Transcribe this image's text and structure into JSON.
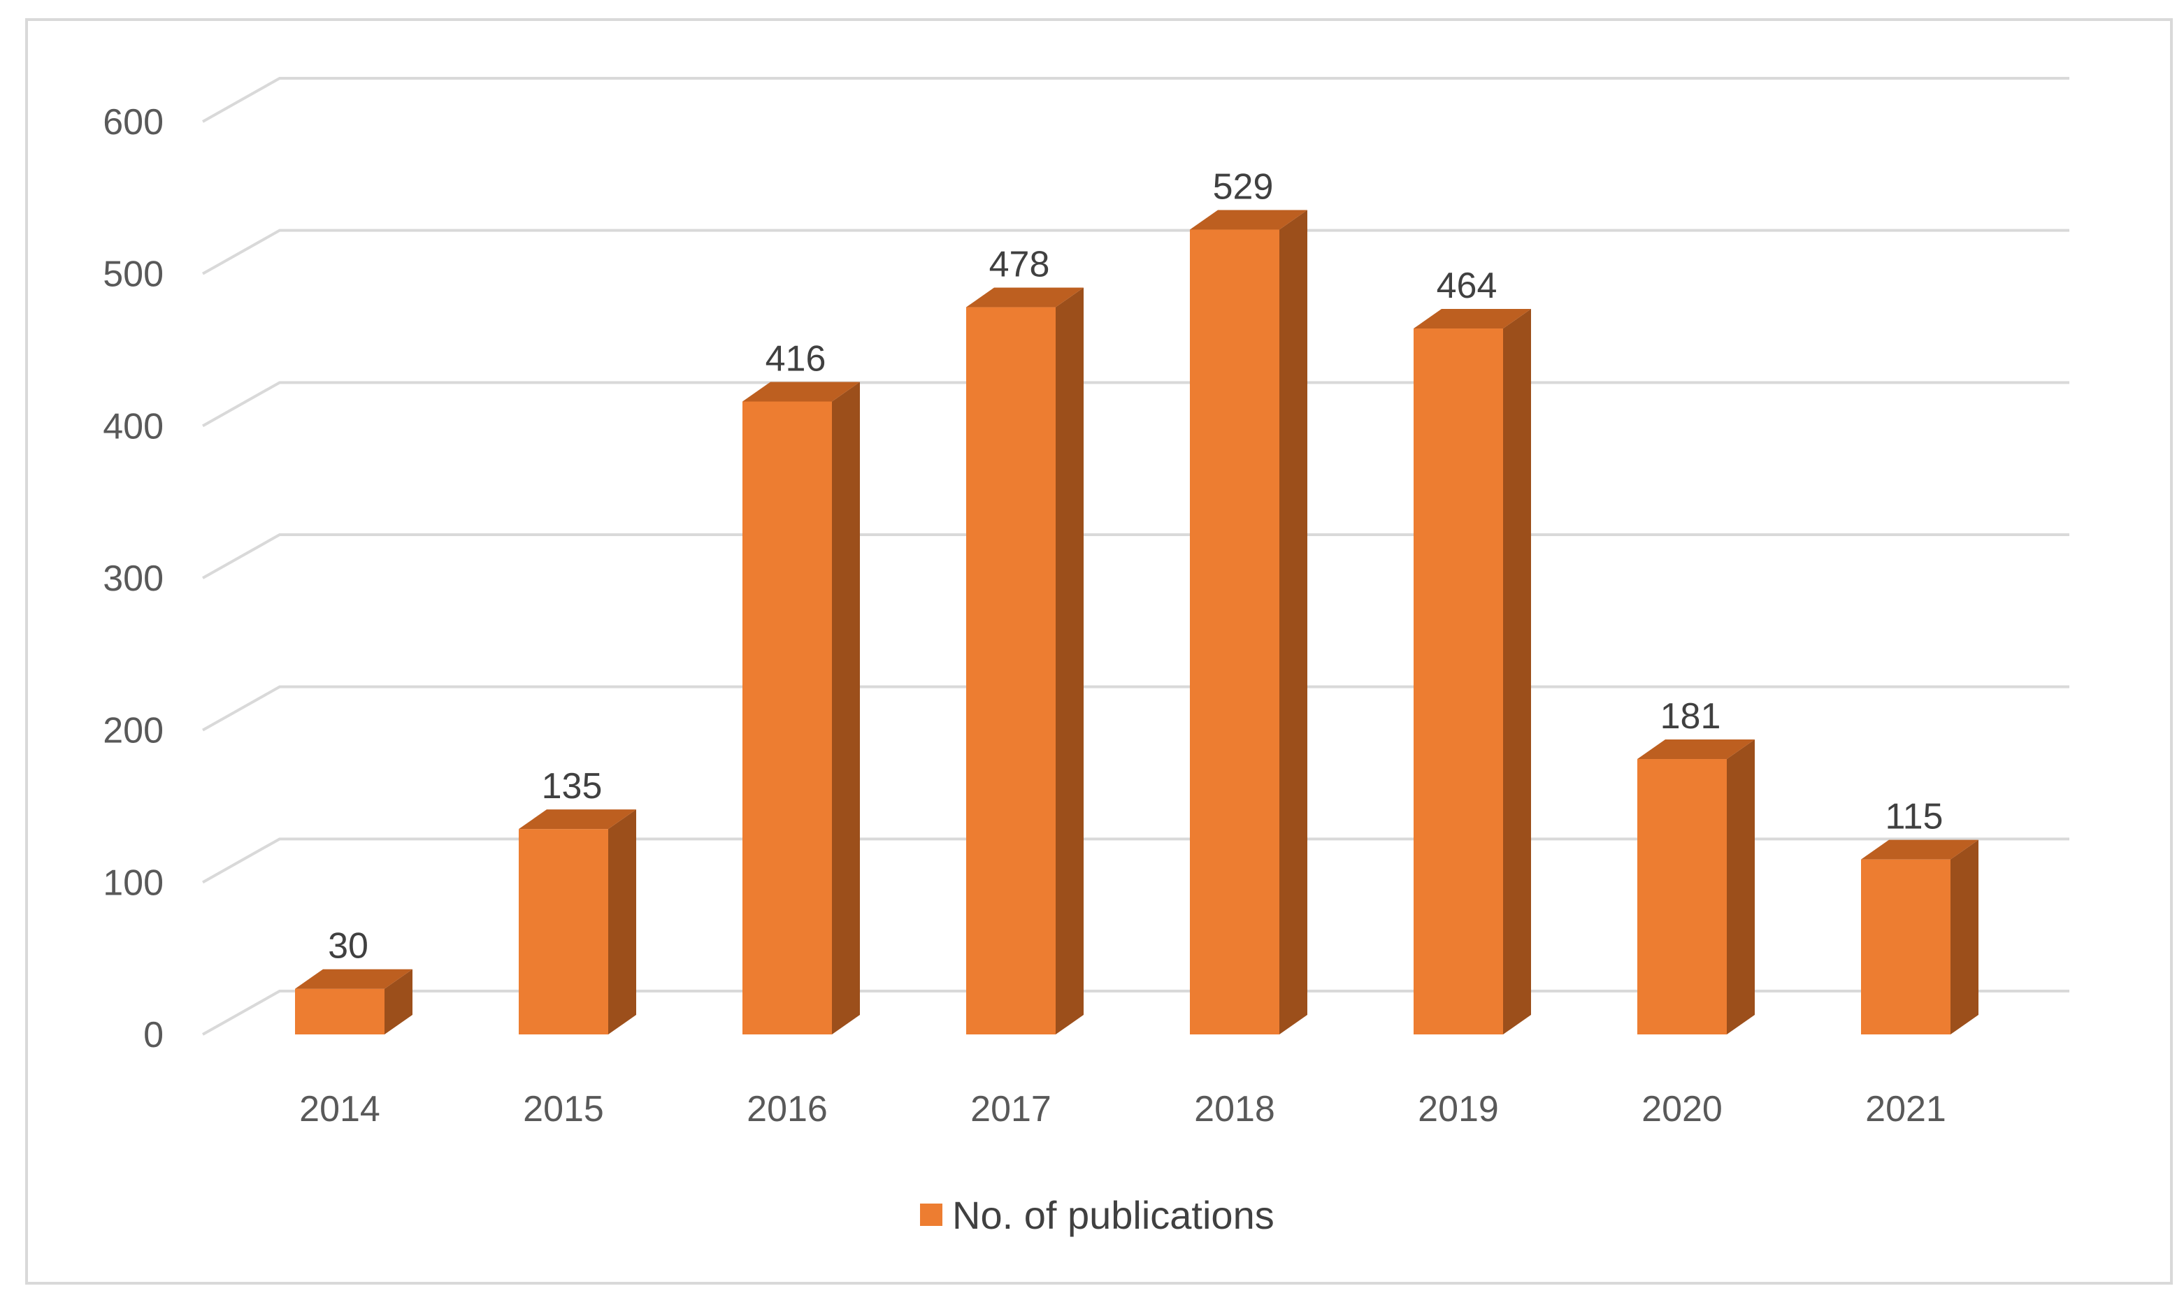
{
  "chart_data": {
    "type": "bar",
    "title": "",
    "xlabel": "",
    "ylabel": "",
    "categories": [
      "2014",
      "2015",
      "2016",
      "2017",
      "2018",
      "2019",
      "2020",
      "2021"
    ],
    "series": [
      {
        "name": "No. of publications",
        "values": [
          30,
          135,
          416,
          478,
          529,
          464,
          181,
          115
        ]
      }
    ],
    "ylim": [
      0,
      600
    ],
    "yticks": [
      0,
      100,
      200,
      300,
      400,
      500,
      600
    ],
    "data_labels": true,
    "grid": true,
    "legend_position": "bottom",
    "style": "3d-column"
  },
  "colors": {
    "bar_front": "#ed7d31",
    "bar_side": "#9c4f1b",
    "bar_top": "#bd5f20",
    "gridline": "#d9d9d9",
    "tick_text": "#595959",
    "border": "#d9d9d9"
  }
}
